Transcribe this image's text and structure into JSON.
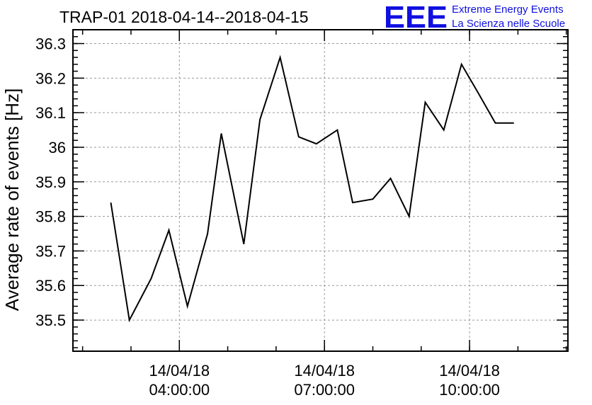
{
  "chart_data": {
    "type": "line",
    "title": "TRAP-01 2018-04-14--2018-04-15",
    "ylabel": "Average rate of events [Hz]",
    "xlabel": "",
    "ylim": [
      35.41,
      36.34
    ],
    "xlim": [
      "2018-04-14 01:48",
      "2018-04-14 12:02"
    ],
    "y_ticks": [
      "35.5",
      "35.6",
      "35.7",
      "35.8",
      "35.9",
      "36",
      "36.1",
      "36.2",
      "36.3"
    ],
    "x_ticks": [
      {
        "time": "2018-04-14 04:00",
        "date_label": "14/04/18",
        "time_label": "04:00:00"
      },
      {
        "time": "2018-04-14 07:00",
        "date_label": "14/04/18",
        "time_label": "07:00:00"
      },
      {
        "time": "2018-04-14 10:00",
        "date_label": "14/04/18",
        "time_label": "10:00:00"
      }
    ],
    "grid": true,
    "series": [
      {
        "x": [
          "2018-04-14 02:35",
          "2018-04-14 02:58",
          "2018-04-14 03:25",
          "2018-04-14 03:47",
          "2018-04-14 04:10",
          "2018-04-14 04:35",
          "2018-04-14 04:52",
          "2018-04-14 05:20",
          "2018-04-14 05:40",
          "2018-04-14 06:05",
          "2018-04-14 06:28",
          "2018-04-14 06:50",
          "2018-04-14 07:16",
          "2018-04-14 07:35",
          "2018-04-14 08:00",
          "2018-04-14 08:22",
          "2018-04-14 08:45",
          "2018-04-14 09:05",
          "2018-04-14 09:28",
          "2018-04-14 09:50",
          "2018-04-14 10:10",
          "2018-04-14 10:32",
          "2018-04-14 10:55"
        ],
        "values": [
          35.84,
          35.5,
          35.62,
          35.76,
          35.54,
          35.75,
          36.04,
          35.72,
          36.08,
          36.26,
          36.03,
          36.01,
          36.05,
          35.84,
          35.85,
          35.91,
          35.8,
          36.13,
          36.05,
          36.24,
          36.16,
          36.07,
          36.07
        ]
      }
    ],
    "color": "#000000"
  },
  "logo": {
    "mark": "EEE",
    "line1": "Extreme Energy Events",
    "line2": "La Scienza nelle Scuole",
    "color": "#1010e0"
  }
}
